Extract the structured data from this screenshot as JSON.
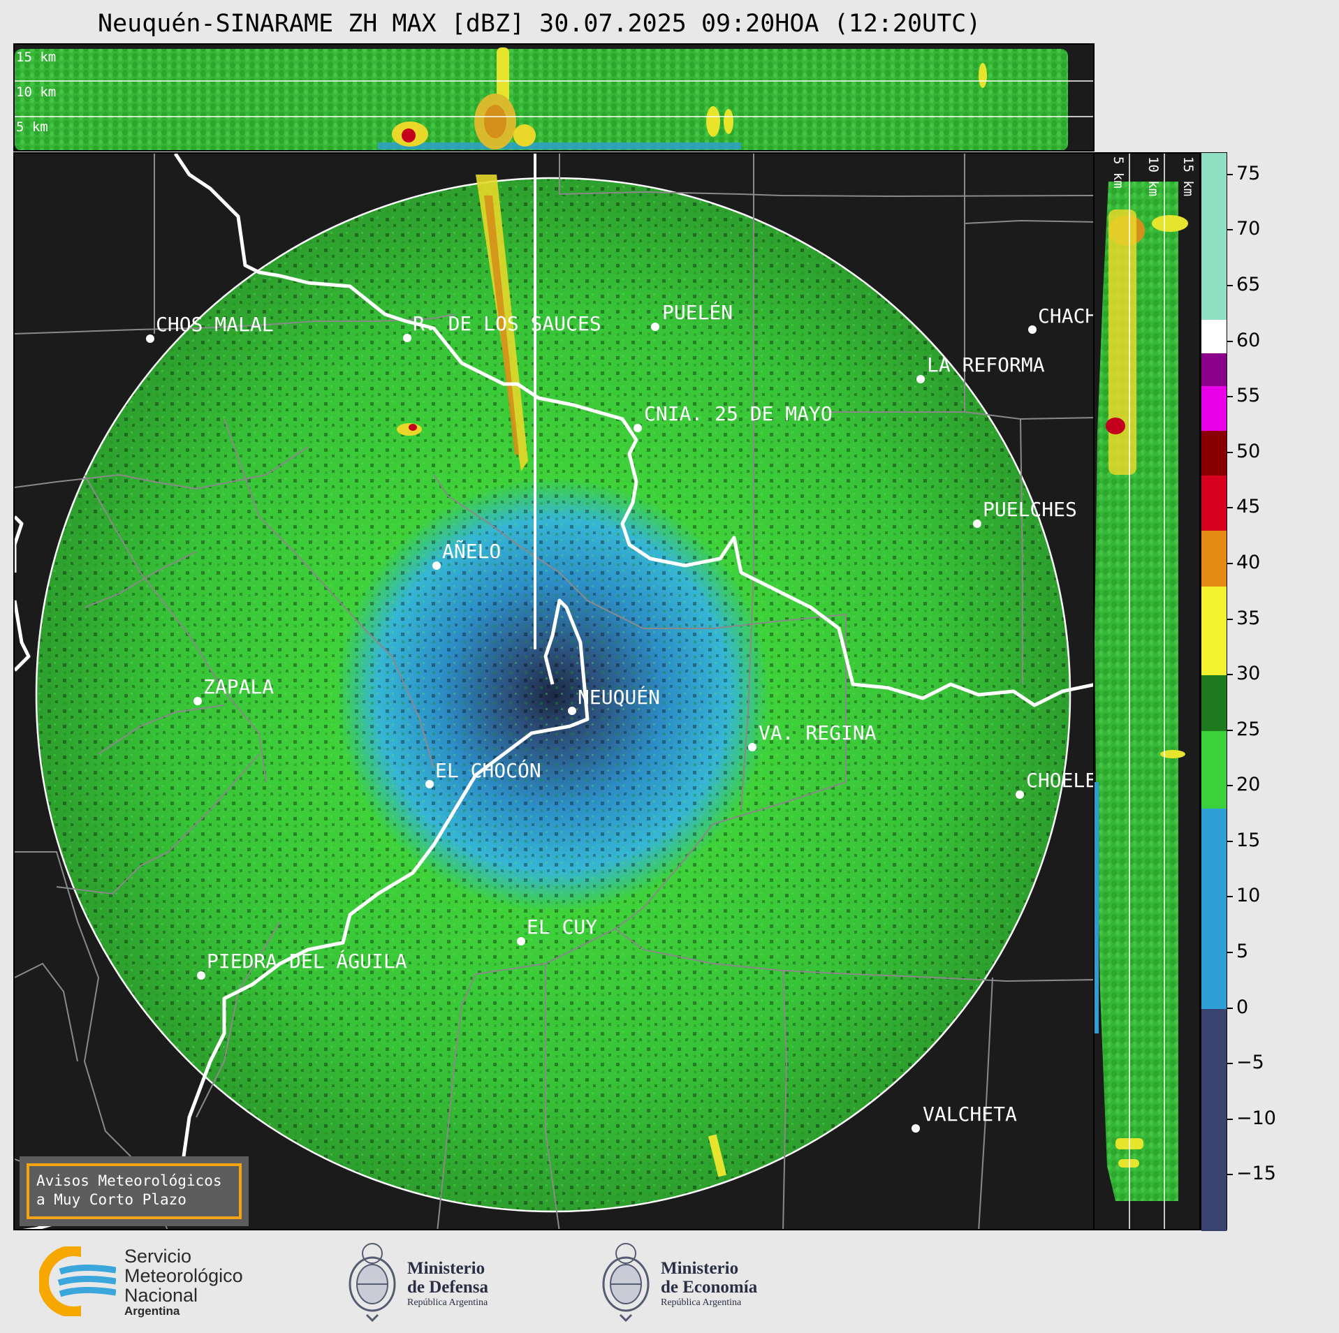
{
  "title": "Neuquén-SINARAME ZH MAX [dBZ] 30.07.2025 09:20HOA (12:20UTC)",
  "top_panel": {
    "height_labels": [
      "15 km",
      "10 km",
      "5 km"
    ]
  },
  "side_panel": {
    "height_labels": [
      "5 km",
      "10 km",
      "15 km"
    ]
  },
  "cities": [
    {
      "name": "CHOS MALAL"
    },
    {
      "name": "R. DE LOS SAUCES"
    },
    {
      "name": "PUELÉN"
    },
    {
      "name": "CHACH"
    },
    {
      "name": "LA REFORMA"
    },
    {
      "name": "CNIA. 25 DE MAYO"
    },
    {
      "name": "PUELCHES"
    },
    {
      "name": "AÑELO"
    },
    {
      "name": "ZAPALA"
    },
    {
      "name": "NEUQUÉN"
    },
    {
      "name": "VA. REGINA"
    },
    {
      "name": "EL CHOCÓN"
    },
    {
      "name": "CHOELE"
    },
    {
      "name": "EL CUY"
    },
    {
      "name": "PIEDRA DEL ÁGUILA"
    },
    {
      "name": "VALCHETA"
    }
  ],
  "colorbar": {
    "unit": "dBZ",
    "range": [
      -20,
      77
    ],
    "ticks": [
      "75",
      "70",
      "65",
      "60",
      "55",
      "50",
      "45",
      "40",
      "35",
      "30",
      "25",
      "20",
      "15",
      "10",
      "5",
      "0",
      "−5",
      "−10",
      "−15"
    ],
    "colors": {
      "dark_low": "#3a4270",
      "blue": "#2e9fd6",
      "green": "#3bd13b",
      "dark_green": "#1e7a1e",
      "yellow": "#f2f22f",
      "orange": "#e58a12",
      "red": "#d7001e",
      "dark_red": "#8a0000",
      "magenta": "#e800e8",
      "purple": "#8b008b",
      "white": "#ffffff",
      "mint": "#8fe0c3"
    }
  },
  "notice": {
    "line1": "Avisos Meteorológicos",
    "line2": "a Muy Corto Plazo"
  },
  "logos": {
    "smn_line1": "Servicio",
    "smn_line2": "Meteorológico",
    "smn_line3": "Nacional",
    "smn_line4": "Argentina",
    "defensa_line1": "Ministerio",
    "defensa_line2": "de Defensa",
    "defensa_line3": "República Argentina",
    "economia_line1": "Ministerio",
    "economia_line2": "de Economía",
    "economia_line3": "República Argentina"
  }
}
